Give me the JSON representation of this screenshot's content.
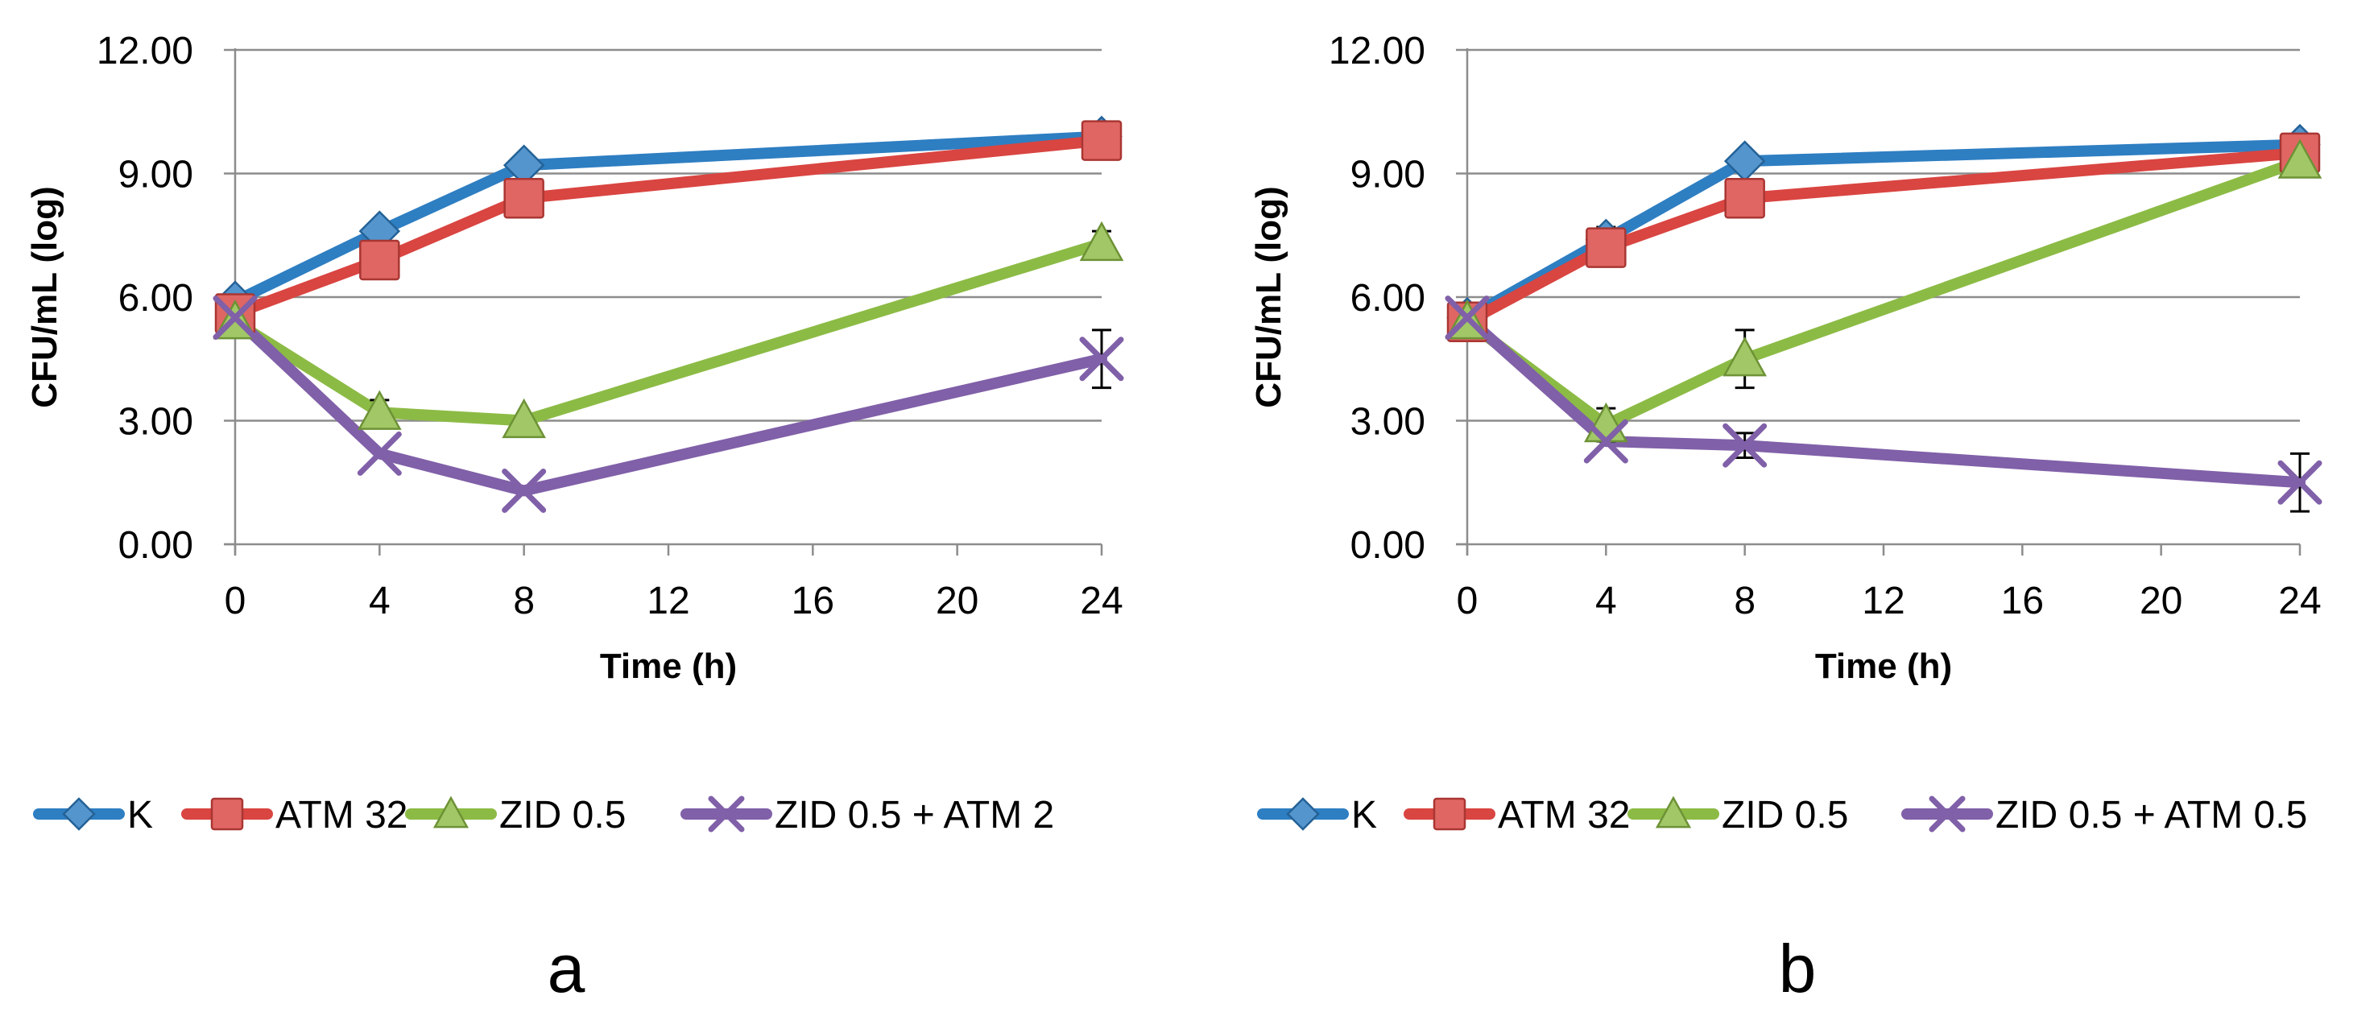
{
  "chart_data": [
    {
      "type": "line",
      "panel_label": "a",
      "xlabel": "Time (h)",
      "ylabel": "CFU/mL (log)",
      "x_ticks": [
        "0",
        "4",
        "8",
        "12",
        "16",
        "20",
        "24"
      ],
      "y_ticks": [
        "0.00",
        "3.00",
        "6.00",
        "9.00",
        "12.00"
      ],
      "xlim": [
        0,
        24
      ],
      "ylim": [
        0,
        12
      ],
      "grid": "horizontal",
      "legend_position": "bottom",
      "x": [
        0,
        4,
        8,
        24
      ],
      "series": [
        {
          "name": "K",
          "marker": "diamond",
          "color": "#2E7EC2",
          "values": [
            5.9,
            7.6,
            9.2,
            9.9
          ],
          "errors": [
            0,
            0,
            0,
            0
          ]
        },
        {
          "name": "ATM 32",
          "marker": "square",
          "color": "#D94541",
          "values": [
            5.6,
            6.9,
            8.4,
            9.8
          ],
          "errors": [
            0,
            0,
            0,
            0
          ]
        },
        {
          "name": "ZID 0.5",
          "marker": "triangle",
          "color": "#8CBB45",
          "values": [
            5.4,
            3.2,
            3.0,
            7.3
          ],
          "errors": [
            0,
            0.3,
            0,
            0.3
          ]
        },
        {
          "name": "ZID 0.5 + ATM 2",
          "marker": "x",
          "color": "#8060A8",
          "values": [
            5.5,
            2.2,
            1.3,
            4.5
          ],
          "errors": [
            0,
            0,
            0,
            0.7
          ]
        }
      ]
    },
    {
      "type": "line",
      "panel_label": "b",
      "xlabel": "Time (h)",
      "ylabel": "CFU/mL (log)",
      "x_ticks": [
        "0",
        "4",
        "8",
        "12",
        "16",
        "20",
        "24"
      ],
      "y_ticks": [
        "0.00",
        "3.00",
        "6.00",
        "9.00",
        "12.00"
      ],
      "xlim": [
        0,
        24
      ],
      "ylim": [
        0,
        12
      ],
      "grid": "horizontal",
      "legend_position": "bottom",
      "x": [
        0,
        4,
        8,
        24
      ],
      "series": [
        {
          "name": "K",
          "marker": "diamond",
          "color": "#2E7EC2",
          "values": [
            5.5,
            7.4,
            9.3,
            9.7
          ],
          "errors": [
            0,
            0.3,
            0,
            0
          ]
        },
        {
          "name": "ATM 32",
          "marker": "square",
          "color": "#D94541",
          "values": [
            5.4,
            7.2,
            8.4,
            9.5
          ],
          "errors": [
            0,
            0,
            0,
            0
          ]
        },
        {
          "name": "ZID 0.5",
          "marker": "triangle",
          "color": "#8CBB45",
          "values": [
            5.4,
            2.9,
            4.5,
            9.3
          ],
          "errors": [
            0,
            0.4,
            0.7,
            0
          ]
        },
        {
          "name": "ZID 0.5 + ATM 0.5",
          "marker": "x",
          "color": "#8060A8",
          "values": [
            5.5,
            2.5,
            2.4,
            1.5
          ],
          "errors": [
            0,
            0,
            0.3,
            0.7
          ]
        }
      ]
    }
  ]
}
